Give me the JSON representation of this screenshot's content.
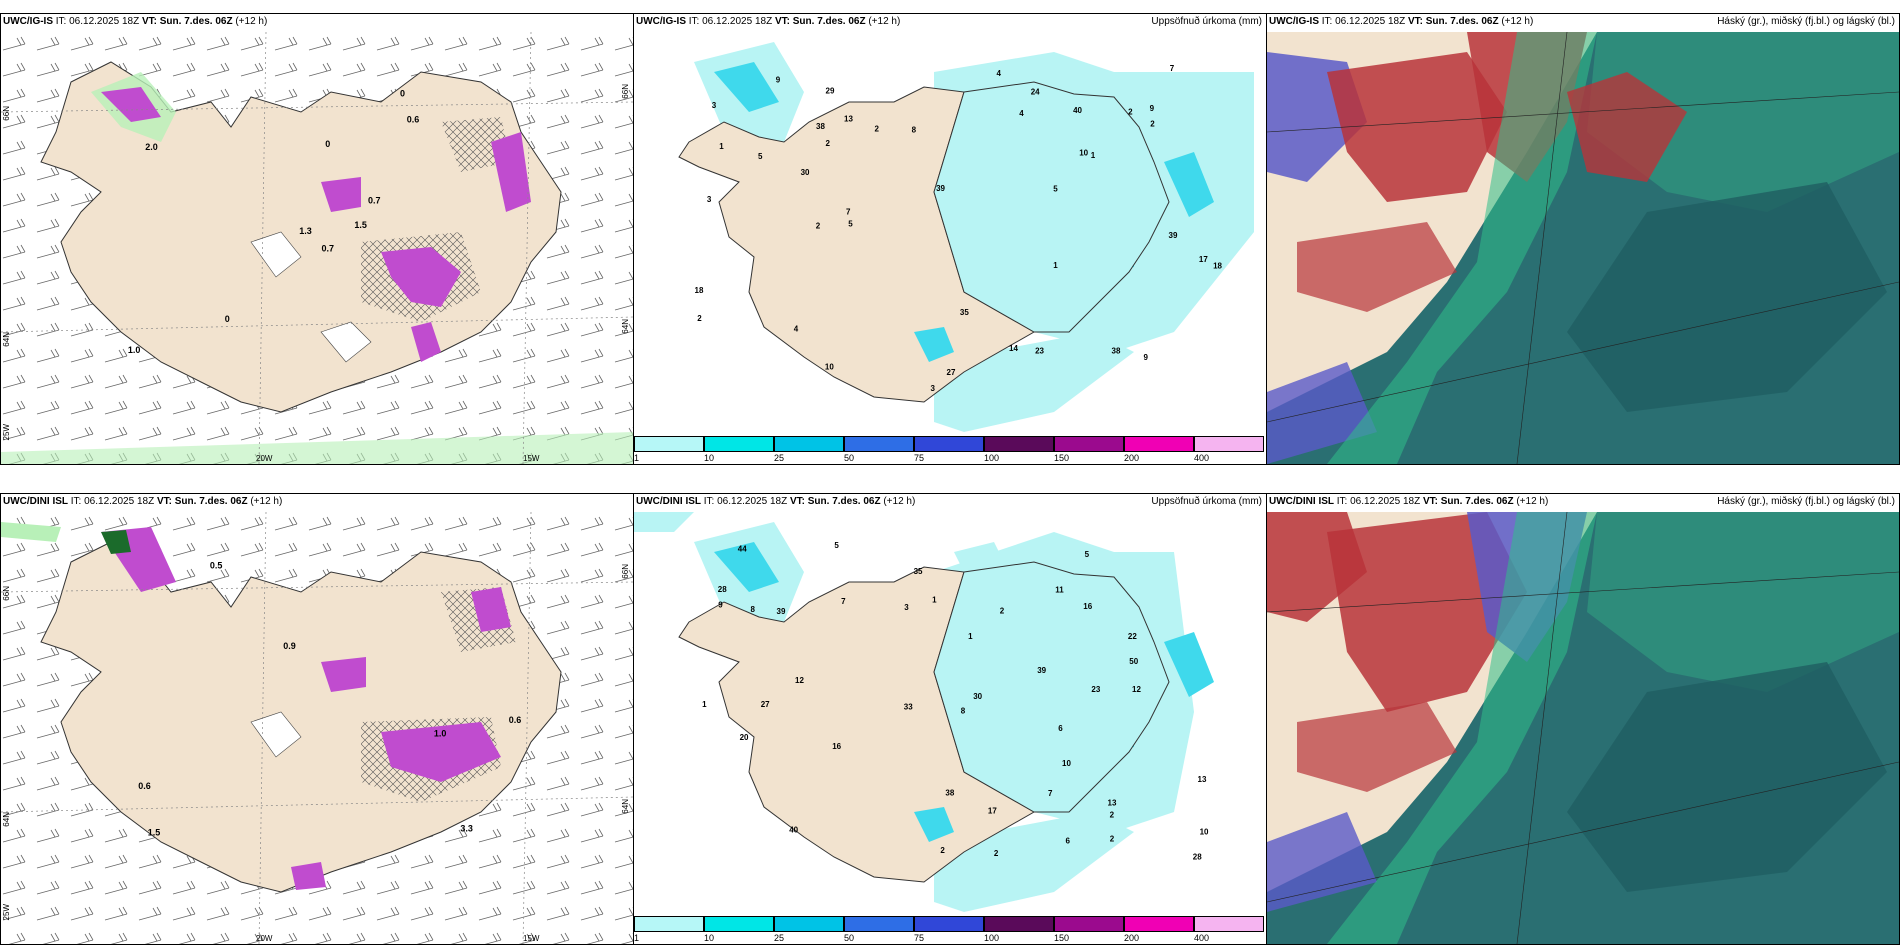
{
  "rows": [
    {
      "model": "UWC/IG-IS",
      "it_label": "IT:",
      "it_value": "06.12.2025 18Z",
      "vt_label": "VT:",
      "vt_value": "Sun. 7.des. 06Z",
      "lead": "(+12 h)",
      "precip_title": "Uppsöfnuð úrkoma (mm)",
      "cloud_title": "Háský (gr.), miðský (fj.bl.) og lágský (bl.)",
      "left_values": [
        "0.7",
        "2.0",
        "1.3",
        "1.0",
        "0.7",
        "0",
        "0",
        "0",
        "0.6",
        "1.5"
      ],
      "mid_values": [
        "1",
        "2",
        "5",
        "27",
        "2",
        "3",
        "1",
        "5",
        "9",
        "18",
        "17",
        "13",
        "10",
        "4",
        "3",
        "10",
        "7",
        "8",
        "9",
        "14",
        "38",
        "39",
        "39",
        "35",
        "40",
        "30",
        "2",
        "24",
        "9",
        "2",
        "18",
        "23",
        "7",
        "5",
        "3",
        "29",
        "2",
        "4",
        "4",
        "2",
        "1",
        "38"
      ]
    },
    {
      "model": "UWC/DINI ISL",
      "it_label": "IT:",
      "it_value": "06.12.2025 18Z",
      "vt_label": "VT:",
      "vt_value": "Sun. 7.des. 06Z",
      "lead": "(+12 h)",
      "precip_title": "Uppsöfnuð úrkoma (mm)",
      "cloud_title": "Háský (gr.), miðský (fj.bl.) og lágský (bl.)",
      "left_values": [
        "1.0",
        "0.6",
        "1.5",
        "0.5",
        "0.9",
        "3.3",
        "0.6"
      ],
      "mid_values": [
        "1",
        "2",
        "28",
        "22",
        "2",
        "1",
        "2",
        "11",
        "12",
        "20",
        "13",
        "2",
        "6",
        "8",
        "10",
        "16",
        "13",
        "7",
        "17",
        "10",
        "9",
        "38",
        "39",
        "33",
        "50",
        "39",
        "44",
        "28",
        "30",
        "35",
        "40",
        "27",
        "5",
        "12",
        "16",
        "3",
        "5",
        "7",
        "6",
        "2",
        "8",
        "1",
        "23"
      ]
    }
  ],
  "axes": {
    "lon_labels": [
      "20W",
      "15W"
    ],
    "lat_labels": [
      "66N",
      "64N",
      "25W"
    ],
    "lat_right": [
      "66N",
      "64N"
    ]
  },
  "colorbar": {
    "labels": [
      "1",
      "10",
      "25",
      "50",
      "75",
      "100",
      "150",
      "200",
      "400"
    ],
    "colors": [
      "#b6f7f7",
      "#00e6e6",
      "#00c3e6",
      "#2e6ee6",
      "#3047d8",
      "#5a0a5a",
      "#9b0a8e",
      "#f000b4",
      "#f5b4f0"
    ]
  },
  "colors": {
    "land": "#f2e3cf",
    "precip_light": "#b8f4f4",
    "precip_mid": "#3fd9ec",
    "violet": "#c04ccf",
    "green_light": "#b8f0b8",
    "cloud_teal": "#2a6f72",
    "cloud_red": "#b8343a",
    "cloud_blue": "#5a5ac8",
    "cloud_green": "#2fc08a"
  }
}
